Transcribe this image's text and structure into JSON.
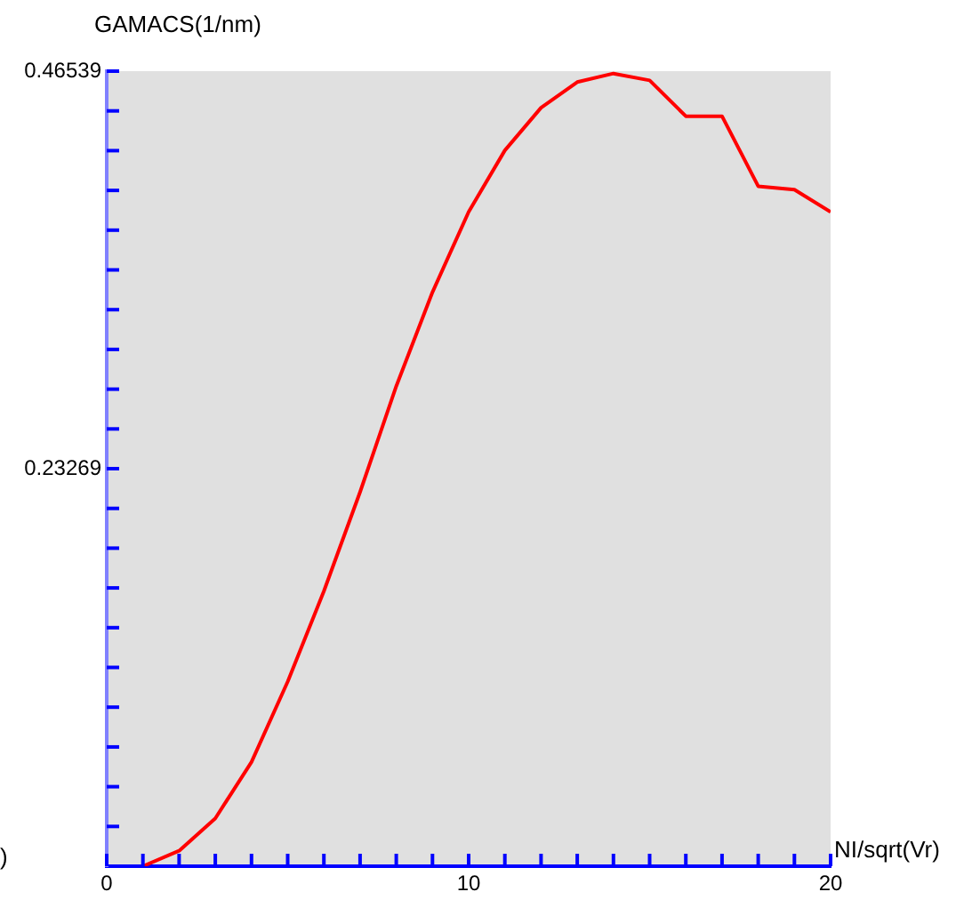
{
  "chart_data": {
    "type": "line",
    "xlabel": "NI/sqrt(Vr)",
    "ylabel": "GAMACS(1/nm)",
    "annotations": [
      ")"
    ],
    "x": [
      1,
      2,
      3,
      4,
      5,
      6,
      7,
      8,
      9,
      10,
      11,
      12,
      13,
      14,
      15,
      16,
      17,
      18,
      19,
      20
    ],
    "series": [
      {
        "color": "#ff0000",
        "values": [
          0,
          0.009,
          0.028,
          0.061,
          0.108,
          0.161,
          0.219,
          0.281,
          0.336,
          0.383,
          0.419,
          0.444,
          0.459,
          0.464,
          0.46,
          0.439,
          0.439,
          0.398,
          0.396,
          0.383
        ]
      }
    ],
    "xlim": [
      0,
      20
    ],
    "ylim": [
      0,
      0.46539
    ],
    "xticks": [
      0,
      {
        "value": 1,
        "label": null
      },
      {
        "value": 2,
        "label": null
      },
      {
        "value": 3,
        "label": null
      },
      {
        "value": 4,
        "label": null
      },
      {
        "value": 5,
        "label": null
      },
      {
        "value": 6,
        "label": null
      },
      {
        "value": 7,
        "label": null
      },
      {
        "value": 8,
        "label": null
      },
      {
        "value": 9,
        "label": null
      },
      10,
      {
        "value": 11,
        "label": null
      },
      {
        "value": 12,
        "label": null
      },
      {
        "value": 13,
        "label": null
      },
      {
        "value": 14,
        "label": null
      },
      {
        "value": 15,
        "label": null
      },
      {
        "value": 16,
        "label": null
      },
      {
        "value": 17,
        "label": null
      },
      {
        "value": 18,
        "label": null
      },
      {
        "value": 19,
        "label": null
      },
      20
    ],
    "yticks": [
      {
        "value": 0.02327,
        "label": null
      },
      {
        "value": 0.04654,
        "label": null
      },
      {
        "value": 0.0698,
        "label": null
      },
      {
        "value": 0.09308,
        "label": null
      },
      {
        "value": 0.11635,
        "label": null
      },
      {
        "value": 0.13962,
        "label": null
      },
      {
        "value": 0.16289,
        "label": null
      },
      {
        "value": 0.18616,
        "label": null
      },
      {
        "value": 0.20943,
        "label": null
      },
      0.23269,
      {
        "value": 0.25596,
        "label": null
      },
      {
        "value": 0.27923,
        "label": null
      },
      {
        "value": 0.3025,
        "label": null
      },
      {
        "value": 0.32577,
        "label": null
      },
      {
        "value": 0.34904,
        "label": null
      },
      {
        "value": 0.37231,
        "label": null
      },
      {
        "value": 0.39558,
        "label": null
      },
      {
        "value": 0.41885,
        "label": null
      },
      {
        "value": 0.44212,
        "label": null
      },
      0.46539
    ],
    "marker": "none",
    "line_style": "solid"
  }
}
